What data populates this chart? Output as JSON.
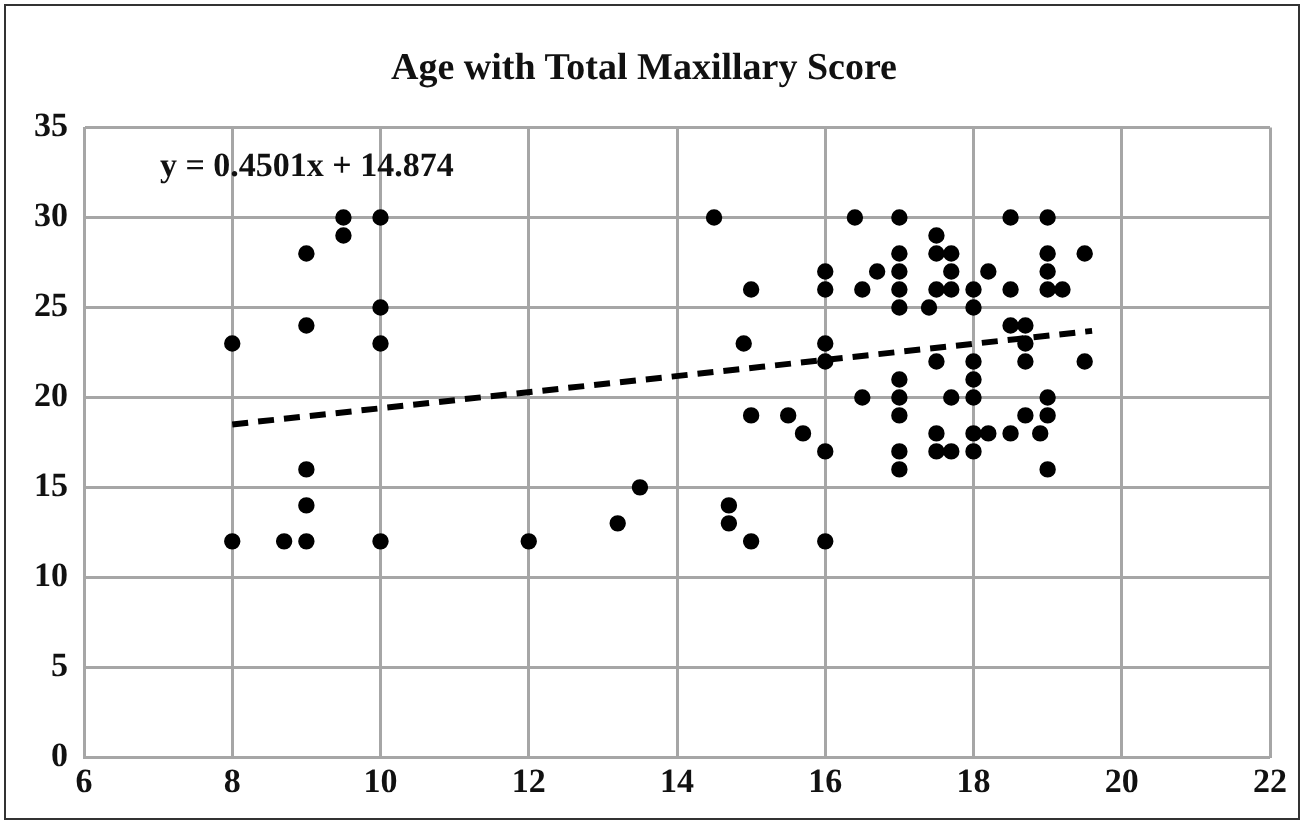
{
  "chart_data": {
    "type": "scatter",
    "title": "Age with Total Maxillary Score",
    "annotations": [
      "y = 0.4501x + 14.874"
    ],
    "xlim": [
      6,
      22
    ],
    "xticks": [
      6,
      8,
      10,
      12,
      14,
      16,
      18,
      20,
      22
    ],
    "ylim": [
      0,
      35
    ],
    "yticks": [
      0,
      5,
      10,
      15,
      20,
      25,
      30,
      35
    ],
    "grid": true,
    "legend": false,
    "marker": "circle",
    "series": [
      {
        "color": "#000000",
        "x": [
          8,
          8,
          8.7,
          9,
          9,
          9,
          9,
          9,
          9.5,
          9.5,
          10,
          10,
          10,
          10,
          12,
          13.2,
          13.5,
          14.5,
          14.7,
          14.7,
          14.9,
          15,
          15,
          15,
          15.5,
          15.7,
          16,
          16,
          16,
          16,
          16,
          16,
          16.4,
          16.5,
          16.5,
          16.7,
          17,
          17,
          17,
          17,
          17,
          17,
          17,
          17,
          17,
          17,
          17.4,
          17.5,
          17.5,
          17.5,
          17.5,
          17.5,
          17.5,
          17.7,
          17.7,
          17.7,
          17.7,
          17.7,
          18,
          18,
          18,
          18,
          18,
          18,
          18,
          18.2,
          18.2,
          18.5,
          18.5,
          18.5,
          18.5,
          18.7,
          18.7,
          18.7,
          18.7,
          18.9,
          19,
          19,
          19,
          19,
          19,
          19,
          19,
          19.2,
          19.5,
          19.5
        ],
        "values": [
          23,
          12,
          12,
          12,
          14,
          16,
          24,
          28,
          30,
          29,
          30,
          25,
          23,
          12,
          12,
          13,
          15,
          30,
          14,
          13,
          23,
          26,
          19,
          12,
          19,
          18,
          17,
          27,
          26,
          23,
          22,
          12,
          30,
          26,
          20,
          27,
          30,
          28,
          27,
          26,
          25,
          21,
          20,
          19,
          17,
          16,
          25,
          29,
          28,
          26,
          22,
          18,
          17,
          28,
          27,
          26,
          20,
          17,
          26,
          25,
          22,
          21,
          20,
          18,
          17,
          27,
          18,
          30,
          26,
          24,
          18,
          24,
          23,
          22,
          19,
          18,
          30,
          28,
          27,
          26,
          20,
          19,
          16,
          26,
          28,
          22
        ]
      },
      {
        "type": "line",
        "color": "#000000",
        "line_style": "dashed",
        "marker": "none",
        "x": [
          8,
          19.6
        ],
        "values": [
          18.5,
          23.7
        ]
      }
    ]
  }
}
